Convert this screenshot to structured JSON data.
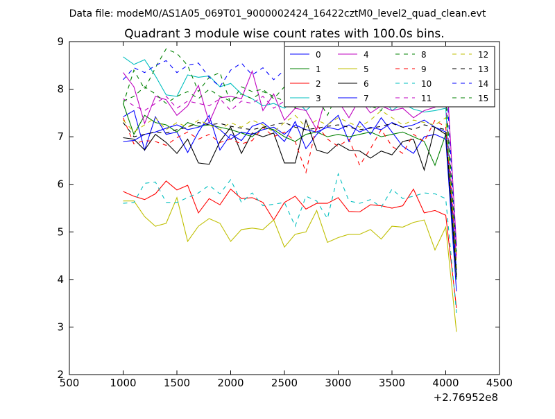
{
  "file_label": "Data file: modeM0/AS1A05_069T01_9000002424_16422cztM0_level2_quad_clean.evt",
  "chart_data": {
    "type": "line",
    "title": "Quadrant 3 module wise count rates with 100.0s bins.",
    "xlabel": "",
    "ylabel": "",
    "x_offset_label": "+2.76952e8",
    "xlim": [
      500,
      4500
    ],
    "ylim": [
      2,
      9
    ],
    "xticks": [
      500,
      1000,
      1500,
      2000,
      2500,
      3000,
      3500,
      4000,
      4500
    ],
    "yticks": [
      2,
      3,
      4,
      5,
      6,
      7,
      8,
      9
    ],
    "grid": false,
    "legend_position": "top-right",
    "x": [
      1000,
      1100,
      1200,
      1300,
      1400,
      1500,
      1600,
      1700,
      1800,
      1900,
      2000,
      2100,
      2200,
      2300,
      2400,
      2500,
      2600,
      2700,
      2800,
      2900,
      3000,
      3100,
      3200,
      3300,
      3400,
      3500,
      3600,
      3700,
      3800,
      3900,
      4000,
      4100
    ],
    "series": [
      {
        "name": "0",
        "color": "#0000ff",
        "dash": "solid",
        "values": [
          7.42,
          7.55,
          6.72,
          7.42,
          7.05,
          7.1,
          6.67,
          7.1,
          7.45,
          6.72,
          7.05,
          6.92,
          7.22,
          7.3,
          7.12,
          6.9,
          7.32,
          6.75,
          7.05,
          7.25,
          7.45,
          6.9,
          7.32,
          7.05,
          7.4,
          7.1,
          6.8,
          6.65,
          7.0,
          7.05,
          6.95,
          3.75
        ]
      },
      {
        "name": "1",
        "color": "#008000",
        "dash": "solid",
        "values": [
          7.7,
          7.05,
          7.45,
          7.3,
          7.25,
          7.1,
          7.3,
          7.22,
          7.25,
          7.2,
          7.15,
          7.08,
          7.0,
          7.2,
          7.15,
          7.0,
          6.9,
          7.05,
          7.1,
          7.0,
          7.05,
          7.0,
          7.05,
          7.1,
          7.0,
          7.05,
          7.1,
          7.0,
          6.9,
          6.4,
          7.05,
          4.0
        ]
      },
      {
        "name": "2",
        "color": "#ff0000",
        "dash": "solid",
        "values": [
          5.85,
          5.75,
          5.68,
          5.8,
          6.07,
          5.88,
          5.98,
          5.4,
          5.7,
          5.57,
          5.9,
          5.7,
          5.72,
          5.62,
          5.25,
          5.62,
          5.75,
          5.48,
          5.6,
          5.6,
          5.72,
          5.43,
          5.42,
          5.57,
          5.55,
          5.5,
          5.55,
          5.9,
          5.4,
          5.45,
          5.35,
          3.4
        ]
      },
      {
        "name": "3",
        "color": "#00bfbf",
        "dash": "solid",
        "values": [
          8.68,
          8.52,
          8.62,
          8.28,
          7.88,
          7.85,
          8.3,
          8.25,
          8.28,
          8.05,
          8.12,
          7.9,
          7.8,
          7.65,
          7.7,
          7.6,
          7.78,
          7.55,
          7.75,
          7.68,
          7.9,
          7.72,
          7.8,
          7.62,
          7.88,
          7.55,
          7.7,
          7.58,
          7.52,
          7.55,
          7.6,
          4.1
        ]
      },
      {
        "name": "4",
        "color": "#bf00bf",
        "dash": "solid",
        "values": [
          8.35,
          8.05,
          7.28,
          7.85,
          7.78,
          7.45,
          7.65,
          8.08,
          7.3,
          7.82,
          7.85,
          7.8,
          8.38,
          7.55,
          7.9,
          7.35,
          7.6,
          7.55,
          7.15,
          7.95,
          7.75,
          7.4,
          7.8,
          7.5,
          7.65,
          7.55,
          7.6,
          7.4,
          7.55,
          7.62,
          8.65,
          4.7
        ]
      },
      {
        "name": "5",
        "color": "#bfbf00",
        "dash": "solid",
        "values": [
          5.65,
          5.65,
          5.32,
          5.12,
          5.18,
          5.72,
          4.8,
          5.12,
          5.28,
          5.18,
          4.8,
          5.05,
          5.08,
          5.05,
          5.25,
          4.68,
          4.95,
          5.0,
          5.45,
          4.78,
          4.88,
          4.95,
          4.95,
          5.05,
          4.85,
          5.12,
          5.1,
          5.2,
          5.25,
          4.62,
          5.1,
          2.9
        ]
      },
      {
        "name": "6",
        "color": "#000000",
        "dash": "solid",
        "values": [
          6.98,
          6.95,
          6.72,
          7.05,
          6.88,
          6.65,
          6.95,
          6.45,
          6.42,
          6.9,
          7.2,
          6.65,
          7.08,
          7.0,
          7.08,
          6.45,
          6.45,
          7.35,
          6.72,
          6.65,
          6.85,
          6.72,
          6.7,
          6.55,
          6.7,
          6.62,
          6.9,
          6.95,
          6.3,
          7.2,
          7.05,
          4.05
        ]
      },
      {
        "name": "7",
        "color": "#0000ff",
        "dash": "solid",
        "values": [
          6.9,
          6.92,
          7.05,
          7.1,
          7.18,
          7.25,
          7.15,
          7.2,
          7.3,
          7.15,
          6.95,
          7.1,
          7.05,
          7.15,
          7.2,
          7.05,
          7.25,
          7.15,
          7.1,
          7.2,
          7.15,
          7.25,
          7.1,
          7.2,
          7.15,
          7.3,
          7.2,
          7.25,
          7.35,
          7.2,
          7.1,
          4.2
        ]
      },
      {
        "name": "8",
        "color": "#008000",
        "dash": "dashed",
        "values": [
          7.68,
          8.4,
          8.0,
          8.45,
          8.85,
          8.75,
          8.5,
          7.95,
          8.25,
          8.35,
          7.7,
          8.05,
          7.95,
          8.0,
          7.8,
          8.05,
          7.6,
          8.0,
          7.85,
          7.45,
          7.95,
          7.75,
          8.25,
          7.65,
          7.55,
          8.0,
          7.85,
          8.1,
          7.7,
          7.65,
          7.8,
          4.3
        ]
      },
      {
        "name": "9",
        "color": "#ff0000",
        "dash": "dashed",
        "values": [
          7.4,
          6.85,
          6.92,
          6.9,
          6.82,
          6.98,
          7.1,
          6.95,
          7.05,
          6.88,
          6.95,
          6.85,
          6.92,
          7.2,
          7.0,
          7.1,
          6.9,
          6.25,
          7.25,
          6.95,
          6.8,
          6.95,
          6.4,
          6.75,
          7.15,
          6.8,
          6.65,
          7.05,
          6.9,
          7.35,
          7.2,
          4.5
        ]
      },
      {
        "name": "10",
        "color": "#00bfbf",
        "dash": "dashed",
        "values": [
          5.6,
          5.62,
          6.02,
          6.05,
          5.62,
          5.62,
          5.72,
          5.82,
          5.98,
          5.8,
          6.1,
          5.62,
          5.82,
          5.55,
          5.58,
          5.62,
          5.12,
          5.75,
          5.65,
          5.28,
          6.22,
          5.65,
          5.6,
          5.68,
          5.52,
          5.9,
          5.7,
          5.75,
          5.82,
          5.8,
          5.7,
          3.3
        ]
      },
      {
        "name": "11",
        "color": "#bf00bf",
        "dash": "dashed",
        "values": [
          7.8,
          7.65,
          7.55,
          7.7,
          7.85,
          7.6,
          7.75,
          7.7,
          7.65,
          7.8,
          7.55,
          7.75,
          7.7,
          7.85,
          7.6,
          7.75,
          7.8,
          7.65,
          7.7,
          7.75,
          7.6,
          7.85,
          7.7,
          7.75,
          7.8,
          7.65,
          7.75,
          7.7,
          7.8,
          7.65,
          7.75,
          4.4
        ]
      },
      {
        "name": "12",
        "color": "#bfbf00",
        "dash": "dashed",
        "values": [
          7.35,
          7.1,
          7.25,
          7.4,
          7.15,
          7.3,
          7.2,
          7.35,
          7.25,
          7.15,
          7.3,
          7.2,
          7.35,
          7.25,
          7.1,
          7.3,
          7.45,
          7.2,
          7.35,
          7.25,
          7.4,
          7.3,
          7.2,
          7.35,
          7.55,
          7.4,
          7.25,
          7.35,
          7.3,
          7.25,
          7.4,
          4.2
        ]
      },
      {
        "name": "13",
        "color": "#000000",
        "dash": "dashed",
        "values": [
          7.3,
          7.0,
          7.05,
          7.1,
          7.08,
          7.15,
          7.2,
          7.3,
          7.25,
          7.28,
          7.22,
          7.18,
          7.15,
          7.2,
          7.25,
          7.3,
          7.2,
          7.15,
          7.18,
          7.22,
          7.25,
          7.2,
          7.15,
          7.18,
          7.22,
          7.28,
          7.2,
          7.15,
          7.25,
          7.2,
          7.15,
          4.1
        ]
      },
      {
        "name": "14",
        "color": "#0000ff",
        "dash": "dashed",
        "values": [
          8.2,
          8.45,
          8.35,
          8.5,
          8.6,
          8.35,
          8.5,
          8.55,
          8.25,
          8.05,
          8.4,
          8.55,
          8.3,
          8.45,
          8.2,
          8.4,
          8.15,
          8.4,
          8.25,
          8.5,
          8.35,
          8.2,
          8.85,
          8.6,
          8.3,
          8.45,
          8.25,
          8.4,
          8.3,
          8.2,
          8.35,
          4.6
        ]
      },
      {
        "name": "15",
        "color": "#008000",
        "dash": "dashed",
        "values": [
          7.75,
          7.85,
          8.05,
          7.9,
          7.7,
          7.85,
          7.95,
          7.8,
          8.0,
          7.85,
          7.75,
          7.9,
          7.8,
          7.95,
          7.85,
          7.75,
          7.9,
          7.8,
          7.95,
          7.85,
          7.75,
          7.9,
          7.85,
          7.8,
          7.95,
          7.85,
          7.75,
          7.9,
          7.8,
          7.85,
          7.9,
          4.5
        ]
      }
    ]
  }
}
